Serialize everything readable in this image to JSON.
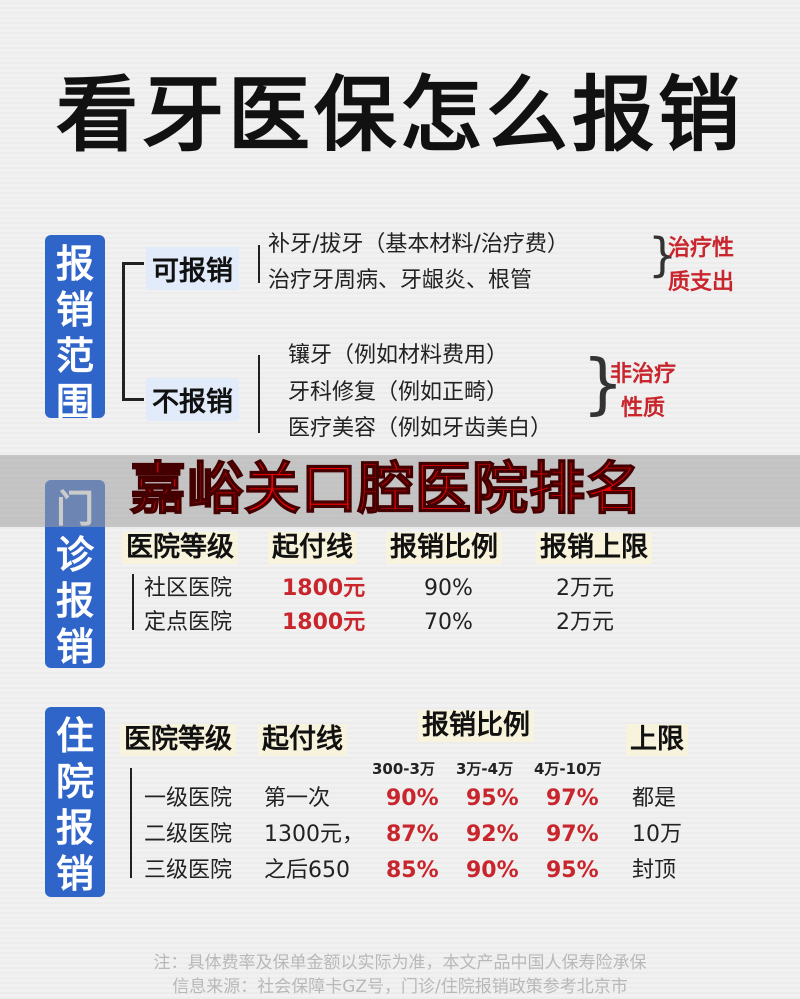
{
  "title": "看牙医保怎么报销",
  "scope": {
    "label": "报销范围",
    "reimbursable": {
      "label": "可报销",
      "items": [
        "补牙/拔牙（基本材料/治疗费）",
        "治疗牙周病、牙龈炎、根管"
      ],
      "nature": [
        "治疗性",
        "质支出"
      ]
    },
    "not_reimbursable": {
      "label": "不报销",
      "items": [
        "镶牙（例如材料费用）",
        "牙科修复（例如正畸）",
        "医疗美容（例如牙齿美白）"
      ],
      "nature": [
        "非治疗",
        "性质"
      ]
    }
  },
  "outpatient": {
    "label": "门诊报销",
    "headers": [
      "医院等级",
      "起付线",
      "报销比例",
      "报销上限"
    ],
    "rows": [
      [
        "社区医院",
        "1800元",
        "90%",
        "2万元"
      ],
      [
        "定点医院",
        "1800元",
        "70%",
        "2万元"
      ]
    ]
  },
  "inpatient": {
    "label": "住院报销",
    "headers": [
      "医院等级",
      "起付线",
      "报销比例",
      "上限"
    ],
    "ranges": [
      "300-3万",
      "3万-4万",
      "4万-10万"
    ],
    "rows": [
      [
        "一级医院",
        "第一次",
        "90%",
        "95%",
        "97%",
        "都是"
      ],
      [
        "二级医院",
        "1300元，",
        "87%",
        "92%",
        "97%",
        "10万"
      ],
      [
        "三级医院",
        "之后650",
        "85%",
        "90%",
        "95%",
        "封顶"
      ]
    ]
  },
  "overlay_text": "嘉峪关口腔医院排名",
  "notes": [
    "注：具体费率及保单金额以实际为准，本文产品中国人保寿险承保",
    "信息来源：社会保障卡GZ号，门诊/住院报销政策参考北京市"
  ],
  "colors": {
    "blue": "#2f64c9",
    "red": "#c8262c",
    "overlay_red": "#ff0000"
  }
}
